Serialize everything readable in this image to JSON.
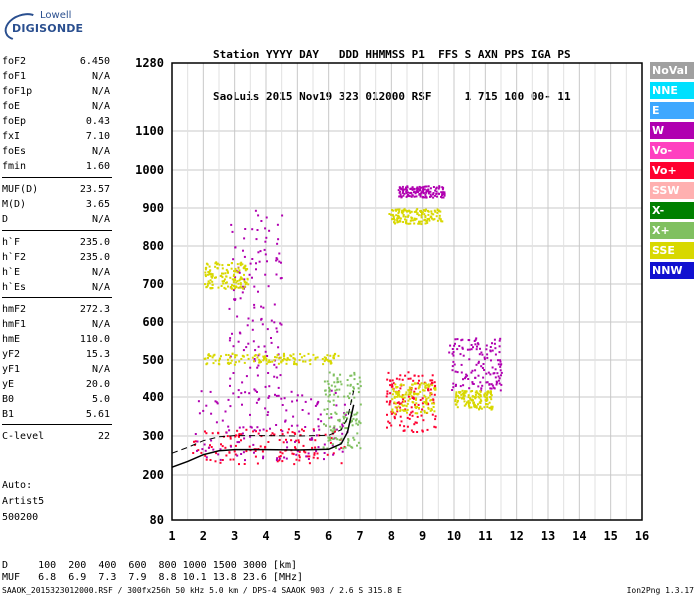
{
  "logo": {
    "line1": "Lowell",
    "line2": "DIGISONDE"
  },
  "header": {
    "labels": "Station YYYY DAY   DDD HHMMSS P1  FFS S AXN PPS IGA PS",
    "values": "SaoLuis 2015 Nov19 323 012000 RSF     1 715 100 00- 11"
  },
  "params": [
    {
      "k": "foF2",
      "v": "6.450"
    },
    {
      "k": "foF1",
      "v": "N/A"
    },
    {
      "k": "foF1p",
      "v": "N/A"
    },
    {
      "k": "foE",
      "v": "N/A"
    },
    {
      "k": "foEp",
      "v": "0.43"
    },
    {
      "k": "fxI",
      "v": "7.10"
    },
    {
      "k": "foEs",
      "v": "N/A"
    },
    {
      "k": "fmin",
      "v": "1.60"
    },
    {
      "k": "MUF(D)",
      "v": "23.57"
    },
    {
      "k": "M(D)",
      "v": "3.65"
    },
    {
      "k": "D",
      "v": "N/A"
    },
    {
      "k": "h`F",
      "v": "235.0"
    },
    {
      "k": "h`F2",
      "v": "235.0"
    },
    {
      "k": "h`E",
      "v": "N/A"
    },
    {
      "k": "h`Es",
      "v": "N/A"
    },
    {
      "k": "hmF2",
      "v": "272.3"
    },
    {
      "k": "hmF1",
      "v": "N/A"
    },
    {
      "k": "hmE",
      "v": "110.0"
    },
    {
      "k": "yF2",
      "v": "15.3"
    },
    {
      "k": "yF1",
      "v": "N/A"
    },
    {
      "k": "yE",
      "v": "20.0"
    },
    {
      "k": "B0",
      "v": "5.0"
    },
    {
      "k": "B1",
      "v": "5.61"
    },
    {
      "k": "C-level",
      "v": "22"
    }
  ],
  "auto": [
    "Auto:",
    "Artist5",
    "500200"
  ],
  "legend": [
    {
      "label": "NoVal",
      "color": "#a0a0a0"
    },
    {
      "label": "NNE",
      "color": "#00e0ff"
    },
    {
      "label": "E",
      "color": "#3fa8ff"
    },
    {
      "label": "W",
      "color": "#b000b0"
    },
    {
      "label": "Vo-",
      "color": "#ff40c0"
    },
    {
      "label": "Vo+",
      "color": "#ff0030"
    },
    {
      "label": "SSW",
      "color": "#ffb0b0"
    },
    {
      "label": "X-",
      "color": "#008000"
    },
    {
      "label": "X+",
      "color": "#80c060"
    },
    {
      "label": "SSE",
      "color": "#d8d800"
    },
    {
      "label": "NNW",
      "color": "#1010d0"
    }
  ],
  "bottom": {
    "d_row": "D     100  200  400  600  800 1000 1500 3000 [km]",
    "muf_row": "MUF   6.8  6.9  7.3  7.9  8.8 10.1 13.8 23.6 [MHz]"
  },
  "footer": {
    "left": "SAAOK_2015323012000.RSF / 300fx256h 50 kHz 5.0 km / DPS-4 SAAOK 903 / 2.6 S 315.8 E",
    "right": "Ion2Png 1.3.17"
  },
  "chart_data": {
    "type": "scatter",
    "title": "",
    "xlabel": "",
    "ylabel": "",
    "x_ticks": [
      1,
      2,
      3,
      4,
      5,
      6,
      7,
      8,
      9,
      10,
      11,
      12,
      13,
      14,
      15,
      16
    ],
    "y_ticks": [
      80,
      200,
      300,
      400,
      500,
      600,
      700,
      800,
      900,
      1000,
      1100,
      1280
    ],
    "xlim": [
      1,
      16
    ],
    "y_scale": "log-like (virtual height, km)",
    "grid": true,
    "legend_placement": "right",
    "clusters": [
      {
        "name": "F trace low",
        "color": "#ff0030",
        "fx": [
          1.6,
          6.5
        ],
        "hy": [
          230,
          320
        ]
      },
      {
        "name": "F trace purple",
        "color": "#b000b0",
        "fx": [
          1.7,
          6.6
        ],
        "hy": [
          240,
          420
        ]
      },
      {
        "name": "spread W",
        "color": "#b000b0",
        "fx": [
          2.8,
          4.5
        ],
        "hy": [
          400,
          900
        ]
      },
      {
        "name": "SSE band 500",
        "color": "#d8d800",
        "fx": [
          2.0,
          6.3
        ],
        "hy": [
          490,
          520
        ]
      },
      {
        "name": "SSE band 700",
        "color": "#d8d800",
        "fx": [
          2.0,
          3.4
        ],
        "hy": [
          690,
          760
        ]
      },
      {
        "name": "X+ trace",
        "color": "#80c060",
        "fx": [
          5.8,
          7.0
        ],
        "hy": [
          270,
          470
        ]
      },
      {
        "name": "multi-hop 8-9",
        "color": "#ff0030",
        "fx": [
          7.8,
          9.4
        ],
        "hy": [
          310,
          470
        ]
      },
      {
        "name": "multi-hop SSE 8-9",
        "color": "#d8d800",
        "fx": [
          8.0,
          9.4
        ],
        "hy": [
          360,
          440
        ]
      },
      {
        "name": "high hop 10-11",
        "color": "#b000b0",
        "fx": [
          9.8,
          11.5
        ],
        "hy": [
          420,
          560
        ]
      },
      {
        "name": "high hop SSE 10-11",
        "color": "#d8d800",
        "fx": [
          10.0,
          11.2
        ],
        "hy": [
          370,
          420
        ]
      },
      {
        "name": "top 900",
        "color": "#b000b0",
        "fx": [
          8.2,
          9.7
        ],
        "hy": [
          930,
          960
        ]
      },
      {
        "name": "top 900 SSE",
        "color": "#d8d800",
        "fx": [
          7.9,
          9.6
        ],
        "hy": [
          860,
          900
        ]
      }
    ],
    "profile_curve": [
      [
        1.0,
        220
      ],
      [
        1.5,
        235
      ],
      [
        2.0,
        252
      ],
      [
        2.5,
        262
      ],
      [
        3.0,
        265
      ],
      [
        4.0,
        265
      ],
      [
        5.0,
        264
      ],
      [
        6.0,
        266
      ],
      [
        6.4,
        280
      ],
      [
        6.6,
        310
      ],
      [
        6.8,
        380
      ]
    ]
  }
}
